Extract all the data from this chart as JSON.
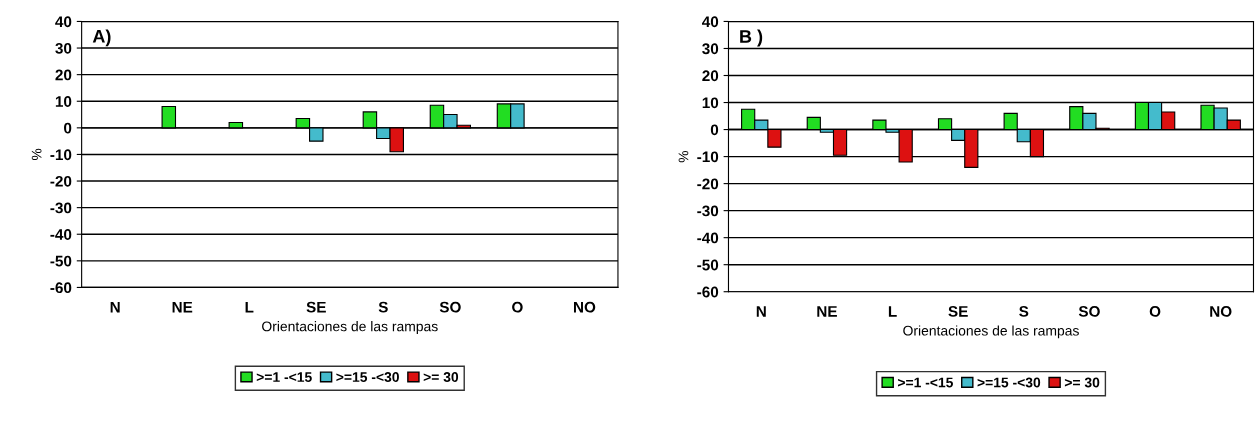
{
  "chart_data": [
    {
      "type": "bar",
      "annotations": [
        "A)"
      ],
      "xlabel": "Orientaciones de las rampas",
      "ylabel": "%",
      "categories": [
        "N",
        "NE",
        "L",
        "SE",
        "S",
        "SO",
        "O",
        "NO"
      ],
      "series": [
        {
          "name": ">=1 -<15",
          "color": "#22dd22",
          "values": [
            null,
            8,
            2,
            3.5,
            6,
            8.5,
            9,
            null
          ]
        },
        {
          "name": ">=15 -<30",
          "color": "#44bbcc",
          "values": [
            null,
            null,
            null,
            -5,
            -4,
            5,
            9,
            null
          ]
        },
        {
          "name": ">= 30",
          "color": "#dd1111",
          "values": [
            null,
            null,
            null,
            null,
            -9,
            1,
            null,
            null
          ]
        }
      ],
      "ylim": [
        -60,
        40
      ],
      "yticks": [
        -60,
        -50,
        -40,
        -30,
        -20,
        -10,
        0,
        10,
        20,
        30,
        40
      ],
      "grid": "y",
      "legend": "bottom"
    },
    {
      "type": "bar",
      "annotations": [
        "B )"
      ],
      "xlabel": "Orientaciones de las rampas",
      "ylabel": "%",
      "categories": [
        "N",
        "NE",
        "L",
        "SE",
        "S",
        "SO",
        "O",
        "NO"
      ],
      "series": [
        {
          "name": ">=1 -<15",
          "color": "#22dd22",
          "values": [
            7.5,
            4.5,
            3.5,
            4,
            6,
            8.5,
            10,
            9
          ]
        },
        {
          "name": ">=15 -<30",
          "color": "#44bbcc",
          "values": [
            3.5,
            -1,
            -1,
            -4,
            -4.5,
            6,
            10,
            8
          ]
        },
        {
          "name": ">= 30",
          "color": "#dd1111",
          "values": [
            -6.5,
            -9.5,
            -12,
            -14,
            -10,
            0.5,
            6.5,
            3.5
          ]
        }
      ],
      "ylim": [
        -60,
        40
      ],
      "yticks": [
        -60,
        -50,
        -40,
        -30,
        -20,
        -10,
        0,
        10,
        20,
        30,
        40
      ],
      "grid": "y",
      "legend": "bottom"
    }
  ]
}
